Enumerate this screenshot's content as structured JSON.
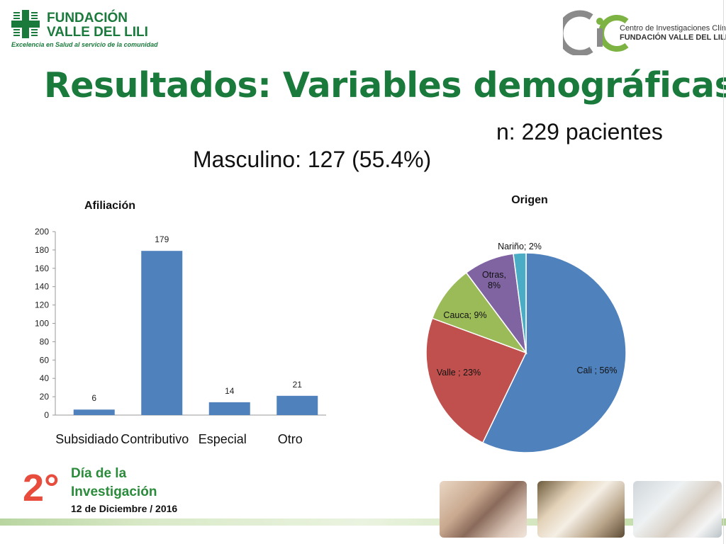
{
  "header": {
    "logo_left_line1": "FUNDACIÓN",
    "logo_left_line2": "VALLE DEL LILI",
    "logo_left_tagline": "Excelencia en Salud al servicio de la comunidad",
    "logo_right_line1": "Centro de Investigaciones Clínicas",
    "logo_right_line2": "FUNDACIÓN VALLE DEL LILI"
  },
  "slide": {
    "title": "Resultados: Variables demográficas",
    "n_text": "n: 229 pacientes",
    "masculino_text": "Masculino: 127 (55.4%)"
  },
  "footer": {
    "number": "2°",
    "line1": "Día de la",
    "line2": "Investigación",
    "date": "12 de Diciembre / 2016"
  },
  "colors": {
    "title_green": "#1a7a3c",
    "bar": "#4f81bd",
    "pie_cali": "#4f81bd",
    "pie_valle": "#c0504d",
    "pie_cauca": "#9bbb59",
    "pie_otras": "#8064a2",
    "pie_narino": "#4bacc6"
  },
  "chart_data": [
    {
      "type": "bar",
      "title": "Afiliación",
      "categories": [
        "Subsidiado",
        "Contributivo",
        "Especial",
        "Otro"
      ],
      "values": [
        6,
        179,
        14,
        21
      ],
      "ylim": [
        0,
        200
      ],
      "yticks": [
        0,
        20,
        40,
        60,
        80,
        100,
        120,
        140,
        160,
        180,
        200
      ],
      "data_labels": [
        "6",
        "179",
        "14",
        "21"
      ],
      "grid": false
    },
    {
      "type": "pie",
      "title": "Origen",
      "slices": [
        {
          "label": "Cali ; 56%",
          "value": 56
        },
        {
          "label": "Valle ; 23%",
          "value": 23
        },
        {
          "label": "Cauca; 9%",
          "value": 9
        },
        {
          "label": "Otras, 8%",
          "value": 8
        },
        {
          "label": "Nariño; 2%",
          "value": 2
        }
      ]
    }
  ]
}
